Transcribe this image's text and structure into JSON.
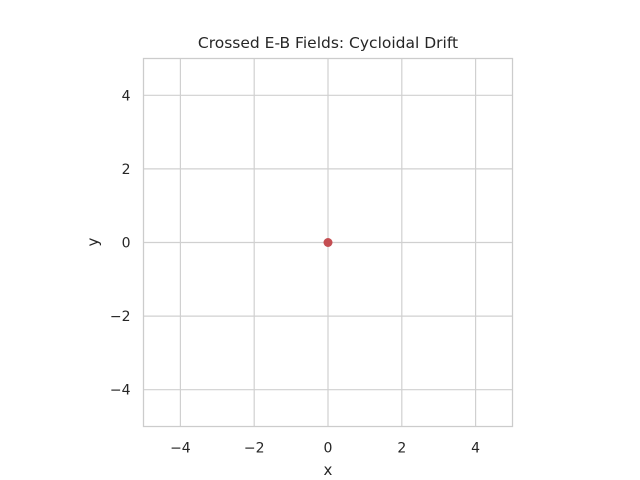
{
  "chart_data": {
    "type": "scatter",
    "title": "Crossed E-B Fields: Cycloidal Drift",
    "xlabel": "x",
    "ylabel": "y",
    "xlim": [
      -5,
      5
    ],
    "ylim": [
      -5,
      5
    ],
    "xticks": [
      -4,
      -2,
      0,
      2,
      4
    ],
    "yticks": [
      -4,
      -2,
      0,
      2,
      4
    ],
    "xtick_labels": [
      "−4",
      "−2",
      "0",
      "2",
      "4"
    ],
    "ytick_labels": [
      "−4",
      "−2",
      "0",
      "2",
      "4"
    ],
    "grid": true,
    "series": [
      {
        "points": [
          {
            "x": 0,
            "y": 0
          }
        ],
        "color": "#c44e52"
      }
    ]
  },
  "colors": {
    "grid": "#d0d0d0",
    "frame": "#cccccc",
    "text": "#262626",
    "background": "#ffffff"
  }
}
